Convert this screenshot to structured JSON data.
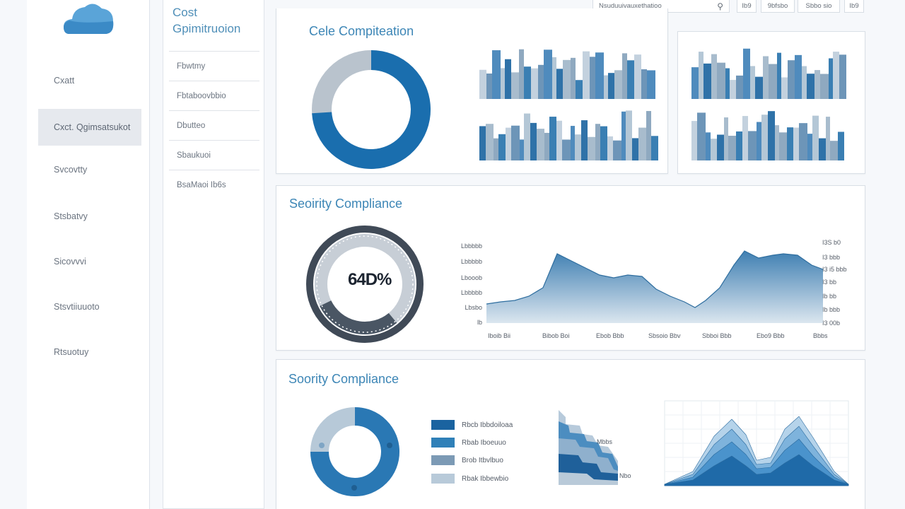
{
  "nav": {
    "items": [
      {
        "label": "Cxatt",
        "active": false
      },
      {
        "label": "Cxct. Qgimsatsukot",
        "active": true
      },
      {
        "label": "Svcovtty",
        "active": false
      },
      {
        "label": "Stsbatvy",
        "active": false
      },
      {
        "label": "Sicovvvi",
        "active": false
      },
      {
        "label": "Stsvtiiuuoto",
        "active": false
      },
      {
        "label": "Rtsuotuy",
        "active": false
      }
    ]
  },
  "subnav": {
    "title_line1": "Cost",
    "title_line2": "Gpimitruoion",
    "items": [
      "Fbwtmy",
      "Fbtaboovbbio",
      "Dbutteo",
      "Sbaukuoi",
      "BsaMaoi Ib6s"
    ]
  },
  "topbar": {
    "search_text": "Nsuduuivauxethatioo",
    "search_icon_glyph": "⚲",
    "buttons": [
      "Ib9",
      "9bfsbo",
      "Sbbo sio",
      "Ib9"
    ]
  },
  "panel1": {
    "title": "Cele Compiteation",
    "donut_value_fraction": 0.74
  },
  "panel2": {
    "title": "Seoirity  Compliance",
    "gauge_text": "64D%",
    "gauge_value_fraction": 0.64,
    "left_ticks": [
      "Lbbbbb",
      "Lbbbbb",
      "Lbooob",
      "Lbbbbb",
      "Lbsbo",
      "lb"
    ],
    "right_ticks": [
      "I3S b0",
      "I3 bbb",
      "I3 i5 bbb",
      "I3 bb",
      "Ib bb",
      "Ib bbb",
      "I3 00b"
    ],
    "x_ticks": [
      "Iboib Bii",
      "Bibob Boi",
      "Ebob Bbb",
      "Sbsoio Bbv",
      "Sbboi Bbb",
      "Ebo9 Bbb",
      "Bbbs"
    ]
  },
  "panel3": {
    "title": "Soority Compliance",
    "legend": [
      {
        "label": "Rbcb Ibbdoiloaa",
        "color": "#1a63a0"
      },
      {
        "label": "Rbab Iboeuuo",
        "color": "#2f80b8"
      },
      {
        "label": "Brob Itbvlbuo",
        "color": "#7c9ab5"
      },
      {
        "label": "Rbak Ibbewbio",
        "color": "#b8cad9"
      }
    ],
    "stair_labels": [
      "Mbbs",
      "Nbo"
    ]
  },
  "colors": {
    "accent": "#1a6eae",
    "light": "#b9c8d6",
    "title_blue": "#3d86b6"
  }
}
